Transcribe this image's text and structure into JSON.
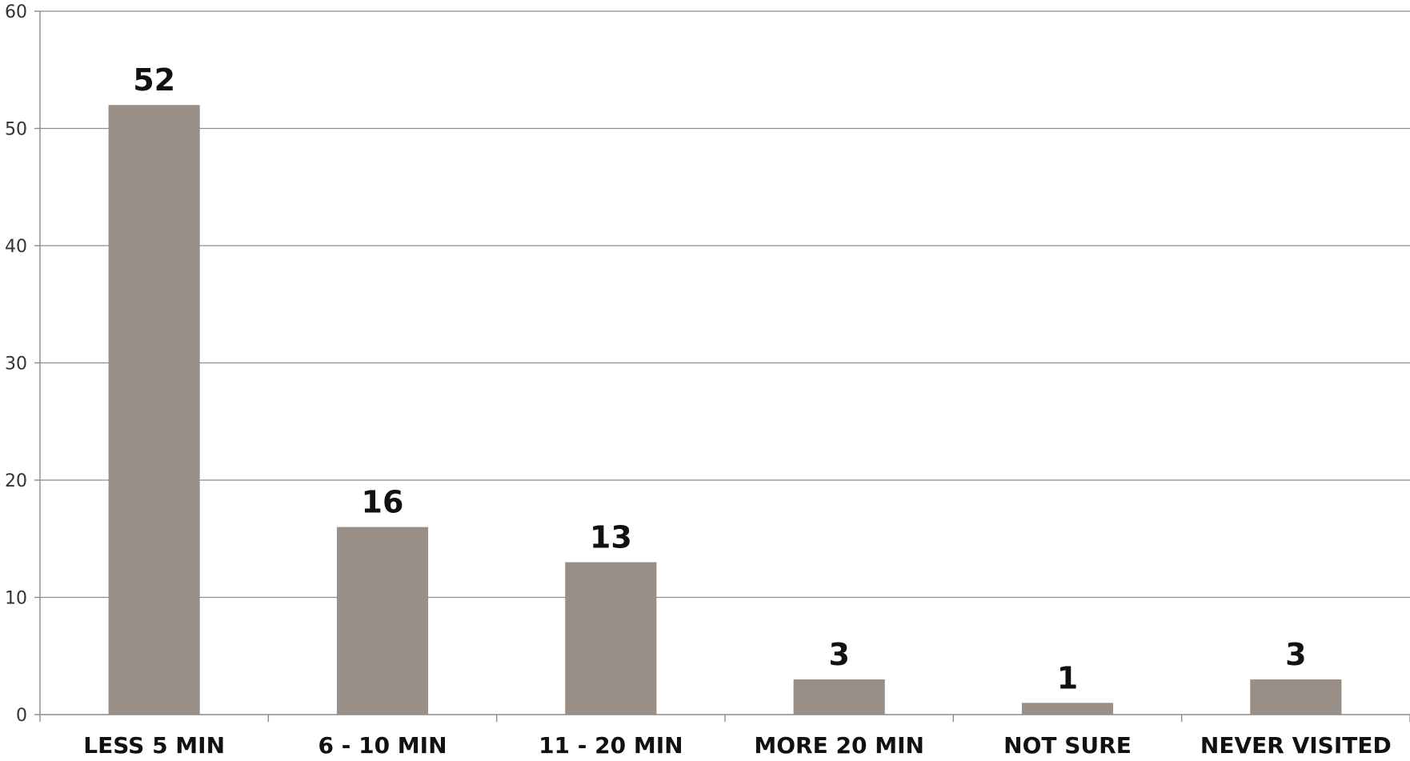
{
  "chart_data": {
    "type": "bar",
    "title": "",
    "xlabel": "",
    "ylabel": "",
    "categories": [
      "LESS 5 MIN",
      "6 - 10 MIN",
      "11 - 20 MIN",
      "MORE 20 MIN",
      "NOT SURE",
      "NEVER VISITED"
    ],
    "values": [
      52,
      16,
      13,
      3,
      1,
      3
    ],
    "data_labels": [
      "52",
      "16",
      "13",
      "3",
      "1",
      "3"
    ],
    "ylim": [
      0,
      60
    ],
    "yticks": [
      0,
      10,
      20,
      30,
      40,
      50,
      60
    ],
    "ytick_labels": [
      "0",
      "10",
      "20",
      "30",
      "40",
      "50",
      "60"
    ],
    "grid": true,
    "legend": "none",
    "bar_color": "#9a8f86"
  }
}
